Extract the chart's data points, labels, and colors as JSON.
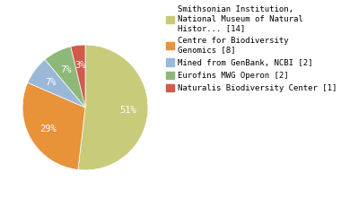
{
  "labels": [
    "Smithsonian Institution,\nNational Museum of Natural\nHistor... [14]",
    "Centre for Biodiversity\nGenomics [8]",
    "Mined from GenBank, NCBI [2]",
    "Eurofins MWG Operon [2]",
    "Naturalis Biodiversity Center [1]"
  ],
  "values": [
    14,
    8,
    2,
    2,
    1
  ],
  "colors": [
    "#c8cc7a",
    "#e8923a",
    "#9ab8d8",
    "#8db87a",
    "#d15a4a"
  ],
  "pct_labels": [
    "51%",
    "29%",
    "7%",
    "7%",
    "3%"
  ],
  "background_color": "#ffffff",
  "startangle": 90,
  "pct_font_size": 7.5,
  "legend_font_size": 6.5
}
